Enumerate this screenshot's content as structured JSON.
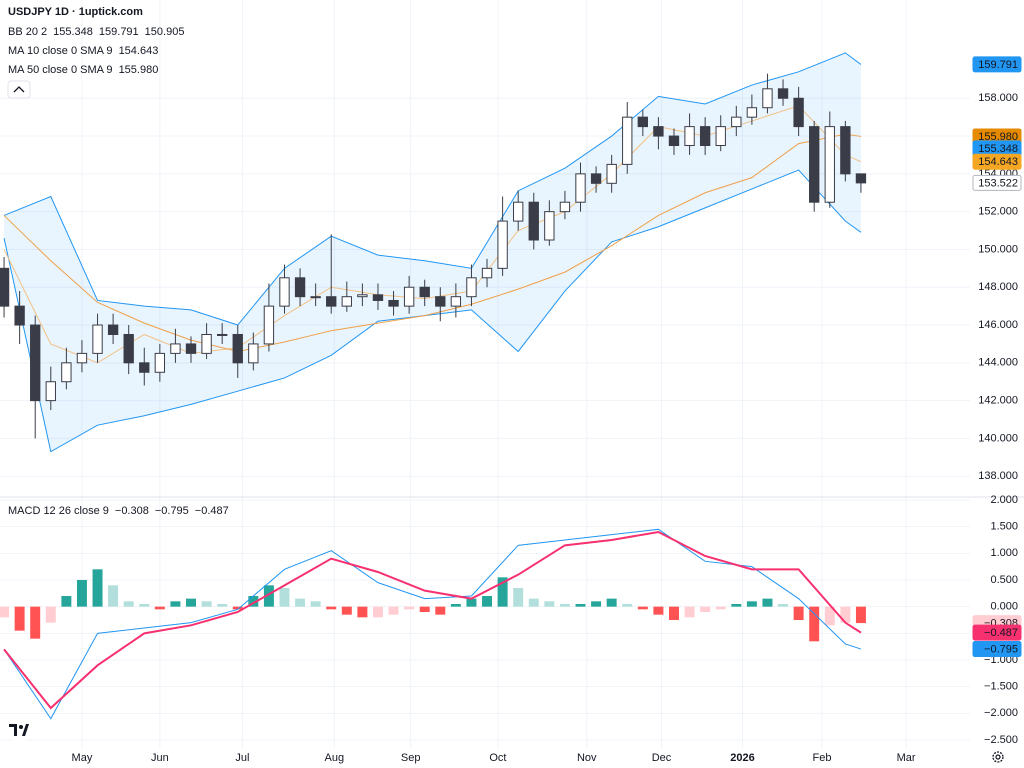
{
  "chart_data": {
    "type": "candlestick",
    "title": "USDJPY 1D · 1uptick.com",
    "x": [
      0,
      1,
      2,
      3,
      4,
      5,
      6,
      7,
      8,
      9,
      10,
      11,
      12,
      13,
      14,
      15,
      16,
      17,
      18,
      19,
      20,
      21,
      22,
      23,
      24,
      25,
      26,
      27,
      28,
      29,
      30,
      31,
      32,
      33,
      34,
      35,
      36,
      37,
      38,
      39,
      40,
      41,
      42,
      43,
      44,
      45,
      46,
      47,
      48,
      49,
      50,
      51,
      52,
      53,
      54,
      55
    ],
    "xlim": [
      -0.26,
      62
    ],
    "xticks": [
      {
        "value": 5,
        "label": "May"
      },
      {
        "value": 10,
        "label": "Jun"
      },
      {
        "value": 15.3,
        "label": "Jul"
      },
      {
        "value": 21.2,
        "label": "Aug"
      },
      {
        "value": 26.1,
        "label": "Sep"
      },
      {
        "value": 31.7,
        "label": "Oct"
      },
      {
        "value": 37.4,
        "label": "Nov"
      },
      {
        "value": 42.2,
        "label": "Dec"
      },
      {
        "value": 47.4,
        "label": "2026"
      },
      {
        "value": 52.5,
        "label": "Feb"
      },
      {
        "value": 57.9,
        "label": "Mar"
      }
    ],
    "open": [
      149,
      147,
      146,
      142,
      143,
      144,
      144.5,
      146,
      145.5,
      144,
      143.5,
      144.5,
      145,
      144.5,
      145.5,
      145.5,
      144,
      145,
      147,
      148.5,
      147.5,
      147.5,
      147,
      147.5,
      147.6,
      147.3,
      147,
      148,
      147.5,
      147,
      147.5,
      148.5,
      149,
      151.5,
      152.5,
      150.5,
      152,
      152.5,
      154,
      153.5,
      154.5,
      157,
      156.5,
      156,
      155.5,
      156.5,
      155.5,
      156.5,
      157,
      157.5,
      158.5,
      158,
      156.5,
      152.5,
      156.5,
      154
    ],
    "high": [
      149.6,
      147.8,
      146.5,
      143.8,
      144.8,
      145.2,
      146.6,
      146.6,
      146,
      144.8,
      145,
      145.8,
      145.4,
      146.1,
      146.1,
      146,
      145.6,
      148.2,
      149.2,
      149,
      148.2,
      150.8,
      148.3,
      148.2,
      148.2,
      147.8,
      148.6,
      148.4,
      148,
      148.2,
      149.2,
      149.5,
      152.8,
      153.1,
      153,
      152.6,
      153.1,
      154.6,
      154.4,
      155,
      157.8,
      157.4,
      157,
      156.4,
      157.2,
      157,
      157.1,
      157.6,
      158.2,
      159.3,
      159,
      158.6,
      156.8,
      157.3,
      156.8,
      154
    ],
    "low": [
      146.4,
      145,
      140,
      141.5,
      142.6,
      143.5,
      144,
      145,
      143.4,
      142.8,
      143,
      144,
      144,
      144.2,
      145,
      143.2,
      143.6,
      144.6,
      146.6,
      147,
      147,
      146.6,
      146.7,
      147,
      146.8,
      146.5,
      146.6,
      147,
      146.2,
      146.4,
      147,
      148,
      148.6,
      151,
      150,
      150.2,
      151.6,
      152,
      153,
      153,
      154,
      156,
      155.3,
      155,
      155,
      155,
      155.2,
      156,
      156.6,
      157.2,
      157.6,
      156,
      152,
      152.2,
      153.6,
      153
    ],
    "close": [
      147,
      146,
      142,
      143,
      144,
      144.5,
      146,
      145.5,
      144,
      143.5,
      144.5,
      145,
      144.5,
      145.5,
      145.5,
      144,
      145,
      147,
      148.5,
      147.5,
      147.5,
      147,
      147.5,
      147.6,
      147.3,
      147,
      148,
      147.5,
      147,
      147.5,
      148.5,
      149,
      151.5,
      152.5,
      150.5,
      152,
      152.5,
      154,
      153.5,
      154.5,
      157,
      156.5,
      156,
      155.5,
      156.5,
      155.5,
      156.5,
      157,
      157.5,
      158.5,
      158,
      156.5,
      152.5,
      156.5,
      154,
      153.522
    ],
    "up_color": "#ffffff",
    "down_color": "#3a3d47",
    "ylim": [
      136.9,
      163.2
    ],
    "yticks": [
      {
        "value": 138,
        "label": "138.000"
      },
      {
        "value": 140,
        "label": "140.000"
      },
      {
        "value": 142,
        "label": "142.000"
      },
      {
        "value": 144,
        "label": "144.000"
      },
      {
        "value": 146,
        "label": "146.000"
      },
      {
        "value": 148,
        "label": "148.000"
      },
      {
        "value": 150,
        "label": "150.000"
      },
      {
        "value": 152,
        "label": "152.000"
      },
      {
        "value": 154,
        "label": "154.000"
      },
      {
        "value": 156,
        "label": "156.000"
      },
      {
        "value": 158,
        "label": "158.000"
      }
    ],
    "grid": true,
    "line_x": [
      0,
      3,
      6,
      9,
      12,
      15,
      18,
      21,
      24,
      27,
      30,
      33,
      36,
      39,
      42,
      45,
      48,
      51,
      54,
      55
    ],
    "bollinger": {
      "name": "BB 20 2",
      "color": "#2196f3",
      "fill": "rgba(33,150,243,0.10)",
      "basis": 155.348,
      "upper": [
        151.8,
        152.8,
        147.3,
        147,
        146.8,
        146,
        149,
        150.7,
        149.7,
        149.4,
        149,
        153.1,
        154.3,
        156,
        158.1,
        157.7,
        158.7,
        159.4,
        160.4,
        159.791
      ],
      "lower": [
        150.6,
        139.3,
        140.7,
        141.2,
        141.8,
        142.5,
        143.2,
        144.4,
        146.2,
        146.5,
        146.8,
        144.6,
        147.8,
        150.4,
        151.2,
        152.2,
        153.2,
        154.2,
        151.5,
        150.905
      ]
    },
    "moving_averages": [
      {
        "name": "MA 10 close 0 SMA 9",
        "color": "#f5a623",
        "line_color": "#f2c185",
        "last": 154.643,
        "values": [
          150,
          145,
          144,
          145.5,
          144.5,
          144.8,
          146.5,
          148,
          147.6,
          147.4,
          147.8,
          151,
          152,
          154,
          156.5,
          156,
          156.8,
          157.6,
          155,
          154.643
        ]
      },
      {
        "name": "MA 50 close 0 SMA 9",
        "color": "#e68a00",
        "line_color": "#f0a04b",
        "last": {
          "value": 155.98,
          "label": "155.980"
        },
        "values": [
          151.8,
          149.4,
          147.2,
          146.1,
          145.2,
          144.6,
          145.1,
          145.7,
          146.1,
          146.5,
          147.1,
          147.9,
          148.8,
          150.2,
          151.8,
          153,
          153.8,
          155.6,
          156.1,
          155.98
        ]
      }
    ],
    "macd": {
      "name": "MACD 12 26 close 9",
      "ylim": [
        -2.65,
        2.056
      ],
      "yticks": [
        {
          "value": -2.5,
          "label": "−2.500"
        },
        {
          "value": -2,
          "label": "−2.000"
        },
        {
          "value": -1.5,
          "label": "−1.500"
        },
        {
          "value": -1,
          "label": "−1.000"
        },
        {
          "value": -0.5,
          "label": "−0.500"
        },
        {
          "value": 0,
          "label": "0.000"
        },
        {
          "value": 0.5,
          "label": "0.500"
        },
        {
          "value": 1,
          "label": "1.000"
        },
        {
          "value": 1.5,
          "label": "1.500"
        },
        {
          "value": 2,
          "label": "2.000"
        }
      ],
      "histogram": [
        -0.2,
        -0.45,
        -0.6,
        -0.3,
        0.2,
        0.5,
        0.7,
        0.4,
        0.1,
        0.05,
        -0.05,
        0.1,
        0.15,
        0.1,
        0.05,
        -0.05,
        0.2,
        0.4,
        0.35,
        0.15,
        0.1,
        -0.05,
        -0.15,
        -0.2,
        -0.2,
        -0.15,
        -0.05,
        -0.1,
        -0.15,
        0.05,
        0.15,
        0.2,
        0.55,
        0.35,
        0.15,
        0.1,
        0.05,
        0.05,
        0.1,
        0.15,
        0.05,
        -0.05,
        -0.15,
        -0.25,
        -0.2,
        -0.1,
        -0.05,
        0.05,
        0.1,
        0.15,
        0.05,
        -0.25,
        -0.65,
        -0.35,
        -0.3,
        -0.308
      ],
      "histogram_colors": [
        "#26a69a",
        "#b2dfdb",
        "#ff5252",
        "#ffcdd2"
      ],
      "macd_line": [
        -0.8,
        -2.1,
        -0.5,
        -0.4,
        -0.3,
        -0.05,
        0.7,
        1.05,
        0.45,
        0.15,
        0.2,
        1.15,
        1.25,
        1.35,
        1.45,
        0.85,
        0.75,
        0.15,
        -0.7,
        -0.795
      ],
      "signal_line": [
        -0.8,
        -1.9,
        -1.1,
        -0.5,
        -0.35,
        -0.1,
        0.4,
        0.9,
        0.65,
        0.3,
        0.15,
        0.6,
        1.15,
        1.25,
        1.4,
        0.95,
        0.7,
        0.7,
        -0.3,
        -0.487
      ],
      "macd_color": "#2196f3",
      "signal_color": "#f7306f",
      "histogram_last": {
        "value": -0.308,
        "label": "−0.308"
      },
      "macd_last": {
        "value": -0.795,
        "label": "−0.795"
      },
      "signal_last": {
        "value": -0.487,
        "label": "−0.487"
      }
    }
  }
}
